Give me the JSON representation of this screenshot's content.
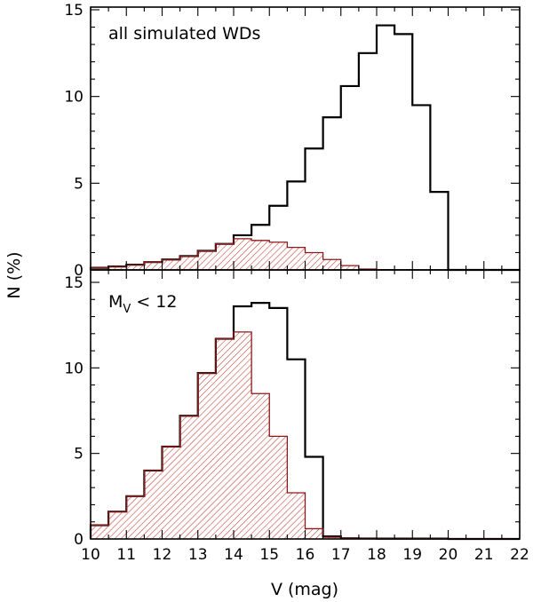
{
  "colors": {
    "total": "#000000",
    "subset": "#a52a2a",
    "hatch": "#c0392b"
  },
  "axes": {
    "xlabel": "V (mag)",
    "ylabel": "N (%)",
    "xlim": [
      10,
      22
    ],
    "ylim": [
      0,
      15.5
    ],
    "xticks": [
      "10",
      "11",
      "12",
      "13",
      "14",
      "15",
      "16",
      "17",
      "18",
      "19",
      "20",
      "21",
      "22"
    ],
    "yticks": [
      "0",
      "5",
      "10",
      "15"
    ]
  },
  "chart_data": [
    {
      "type": "histogram",
      "label": "all simulated WDs",
      "bin_edges": [
        10,
        10.5,
        11,
        11.5,
        12,
        12.5,
        13,
        13.5,
        14,
        14.5,
        15,
        15.5,
        16,
        16.5,
        17,
        17.5,
        18,
        18.5,
        19,
        19.5,
        20,
        20.5,
        21,
        21.5,
        22
      ],
      "series": [
        {
          "style": "outline",
          "values": [
            0.12,
            0.2,
            0.3,
            0.45,
            0.6,
            0.8,
            1.1,
            1.5,
            2.0,
            2.6,
            3.7,
            5.1,
            7.0,
            8.8,
            10.6,
            12.5,
            14.1,
            13.6,
            9.5,
            4.5,
            0,
            0,
            0,
            0
          ]
        },
        {
          "style": "hatched",
          "values": [
            0.12,
            0.2,
            0.3,
            0.45,
            0.6,
            0.8,
            1.1,
            1.5,
            1.8,
            1.7,
            1.6,
            1.3,
            1.0,
            0.6,
            0.25,
            0.05,
            0.02,
            0.01,
            0,
            0,
            0,
            0,
            0,
            0
          ]
        }
      ]
    },
    {
      "type": "histogram",
      "label": "M_V < 12",
      "bin_edges": [
        10,
        10.5,
        11,
        11.5,
        12,
        12.5,
        13,
        13.5,
        14,
        14.5,
        15,
        15.5,
        16,
        16.5,
        17,
        17.5,
        18,
        18.5,
        19,
        19.5,
        20,
        20.5,
        21,
        21.5,
        22
      ],
      "series": [
        {
          "style": "outline",
          "values": [
            0.8,
            1.6,
            2.5,
            4.0,
            5.4,
            7.2,
            9.7,
            11.7,
            13.6,
            13.8,
            13.5,
            10.5,
            4.8,
            0.15,
            0.04,
            0.03,
            0.02,
            0.02,
            0.02,
            0.02,
            0,
            0,
            0,
            0
          ]
        },
        {
          "style": "hatched",
          "values": [
            0.8,
            1.6,
            2.5,
            4.0,
            5.4,
            7.2,
            9.7,
            11.7,
            12.1,
            8.5,
            6.0,
            2.7,
            0.6,
            0.1,
            0.04,
            0.03,
            0.02,
            0.02,
            0.02,
            0.02,
            0,
            0,
            0,
            0
          ]
        }
      ]
    }
  ]
}
